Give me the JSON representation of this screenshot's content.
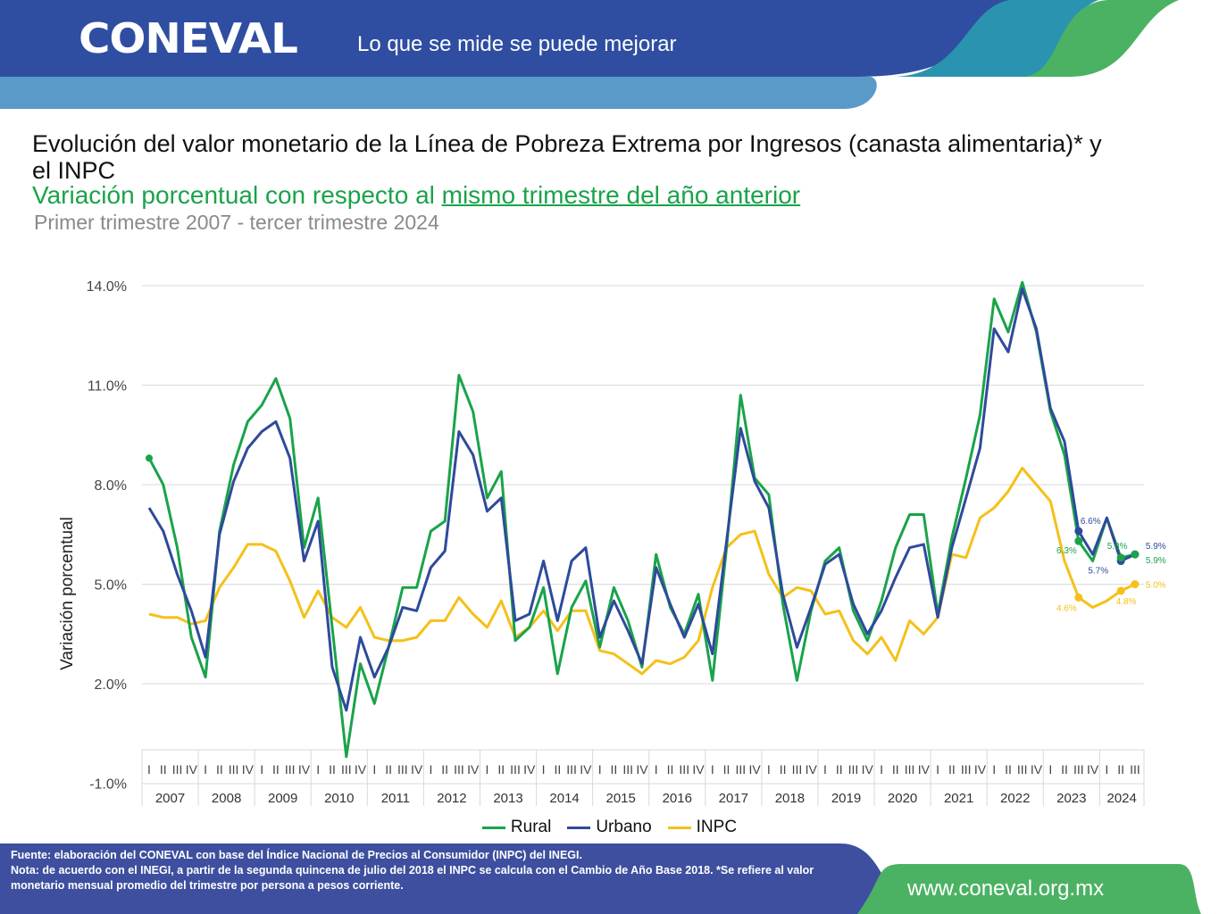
{
  "header": {
    "logo": "CONEVAL",
    "tagline": "Lo que se mide se puede mejorar"
  },
  "titles": {
    "title": "Evolución del valor monetario de la Línea de Pobreza Extrema por Ingresos (canasta alimentaria)* y el INPC",
    "subtitle_plain": "Variación porcentual con respecto al ",
    "subtitle_underlined": "mismo trimestre del año anterior",
    "period": "Primer trimestre 2007 - tercer trimestre 2024"
  },
  "colors": {
    "rural": "#1aa34a",
    "urbano": "#2e4a9b",
    "inpc": "#f5c01a",
    "header_blue": "#2f4ea1",
    "header_light_blue": "#5a9ac8",
    "header_teal": "#2a93b0",
    "header_green": "#4cb263"
  },
  "chart_data": {
    "type": "line",
    "title": "Evolución del valor monetario de la Línea de Pobreza Extrema por Ingresos (canasta alimentaria)* y el INPC",
    "xlabel": "",
    "ylabel": "Variación porcentual",
    "ylim": [
      -1.0,
      14.0
    ],
    "yticks": [
      14.0,
      11.0,
      8.0,
      5.0,
      2.0,
      -1.0
    ],
    "ytick_labels": [
      "14.0%",
      "11.0%",
      "8.0%",
      "5.0%",
      "2.0%",
      "-1.0%"
    ],
    "grid": true,
    "legend_position": "bottom",
    "years": [
      "2007",
      "2008",
      "2009",
      "2010",
      "2011",
      "2012",
      "2013",
      "2014",
      "2015",
      "2016",
      "2017",
      "2018",
      "2019",
      "2020",
      "2021",
      "2022",
      "2023",
      "2024"
    ],
    "quarter_labels": [
      "I",
      "II",
      "III",
      "IV"
    ],
    "quarters_last_year": 3,
    "series": [
      {
        "name": "Rural",
        "key": "rural",
        "values": [
          8.8,
          8.0,
          6.1,
          3.4,
          2.2,
          6.6,
          8.6,
          9.9,
          10.4,
          11.2,
          10.0,
          6.1,
          7.6,
          3.7,
          -0.2,
          2.6,
          1.4,
          3.1,
          4.9,
          4.9,
          6.6,
          6.9,
          11.3,
          10.2,
          7.6,
          8.4,
          3.3,
          3.7,
          4.9,
          2.3,
          4.3,
          5.1,
          3.1,
          4.9,
          3.9,
          2.5,
          5.9,
          4.3,
          3.5,
          4.7,
          2.1,
          6.1,
          10.7,
          8.2,
          7.7,
          4.4,
          2.1,
          4.2,
          5.7,
          6.1,
          4.2,
          3.3,
          4.5,
          6.1,
          7.1,
          7.1,
          4.1,
          6.4,
          8.2,
          10.1,
          13.6,
          12.6,
          14.1,
          12.6,
          10.2,
          8.9,
          6.3,
          5.7,
          7.0,
          5.8,
          5.9
        ]
      },
      {
        "name": "Urbano",
        "key": "urbano",
        "values": [
          7.3,
          6.6,
          5.3,
          4.2,
          2.8,
          6.5,
          8.1,
          9.1,
          9.6,
          9.9,
          8.8,
          5.7,
          6.9,
          2.5,
          1.2,
          3.4,
          2.2,
          3.1,
          4.3,
          4.2,
          5.5,
          6.0,
          9.6,
          8.9,
          7.2,
          7.6,
          3.9,
          4.1,
          5.7,
          3.9,
          5.7,
          6.1,
          3.4,
          4.5,
          3.6,
          2.6,
          5.5,
          4.4,
          3.4,
          4.4,
          2.9,
          6.3,
          9.7,
          8.1,
          7.3,
          4.7,
          3.1,
          4.3,
          5.6,
          5.9,
          4.4,
          3.5,
          4.2,
          5.2,
          6.1,
          6.2,
          4.0,
          6.1,
          7.6,
          9.1,
          12.7,
          12.0,
          13.9,
          12.7,
          10.3,
          9.3,
          6.6,
          5.9,
          7.0,
          5.7,
          5.9
        ]
      },
      {
        "name": "INPC",
        "key": "inpc",
        "values": [
          4.1,
          4.0,
          4.0,
          3.8,
          3.9,
          4.9,
          5.5,
          6.2,
          6.2,
          6.0,
          5.1,
          4.0,
          4.8,
          4.0,
          3.7,
          4.3,
          3.4,
          3.3,
          3.3,
          3.4,
          3.9,
          3.9,
          4.6,
          4.1,
          3.7,
          4.5,
          3.4,
          3.7,
          4.2,
          3.6,
          4.2,
          4.2,
          3.0,
          2.9,
          2.6,
          2.3,
          2.7,
          2.6,
          2.8,
          3.3,
          4.9,
          6.1,
          6.5,
          6.6,
          5.3,
          4.6,
          4.9,
          4.8,
          4.1,
          4.2,
          3.3,
          2.9,
          3.4,
          2.7,
          3.9,
          3.5,
          4.0,
          5.9,
          5.8,
          7.0,
          7.3,
          7.8,
          8.5,
          8.0,
          7.5,
          5.7,
          4.6,
          4.3,
          4.5,
          4.8,
          5.0
        ]
      }
    ],
    "annotations": [
      {
        "series": "urbano",
        "label": "6.6%",
        "year": "2023",
        "quarter": "III"
      },
      {
        "series": "rural",
        "label": "6.3%",
        "year": "2023",
        "quarter": "III"
      },
      {
        "series": "urbano",
        "label": "5.7%",
        "year": "2024",
        "quarter": "II"
      },
      {
        "series": "rural",
        "label": "5.8%",
        "year": "2024",
        "quarter": "II"
      },
      {
        "series": "urbano",
        "label": "5.9%",
        "year": "2024",
        "quarter": "III"
      },
      {
        "series": "rural",
        "label": "5.9%",
        "year": "2024",
        "quarter": "III"
      },
      {
        "series": "inpc",
        "label": "4.6%",
        "year": "2023",
        "quarter": "III"
      },
      {
        "series": "inpc",
        "label": "4.8%",
        "year": "2024",
        "quarter": "II"
      },
      {
        "series": "inpc",
        "label": "5.0%",
        "year": "2024",
        "quarter": "III"
      }
    ]
  },
  "legend": [
    {
      "label": "Rural",
      "key": "rural"
    },
    {
      "label": "Urbano",
      "key": "urbano"
    },
    {
      "label": "INPC",
      "key": "inpc"
    }
  ],
  "footer": {
    "source": "Fuente: elaboración del CONEVAL con base del Índice Nacional de Precios al Consumidor (INPC) del INEGI.",
    "note": "Nota: de acuerdo con el INEGI, a partir de la segunda quincena de julio del 2018 el INPC se calcula con el Cambio de Año Base 2018. *Se refiere al valor monetario mensual promedio del trimestre por persona a pesos corriente.",
    "website": "www.coneval.org.mx"
  }
}
